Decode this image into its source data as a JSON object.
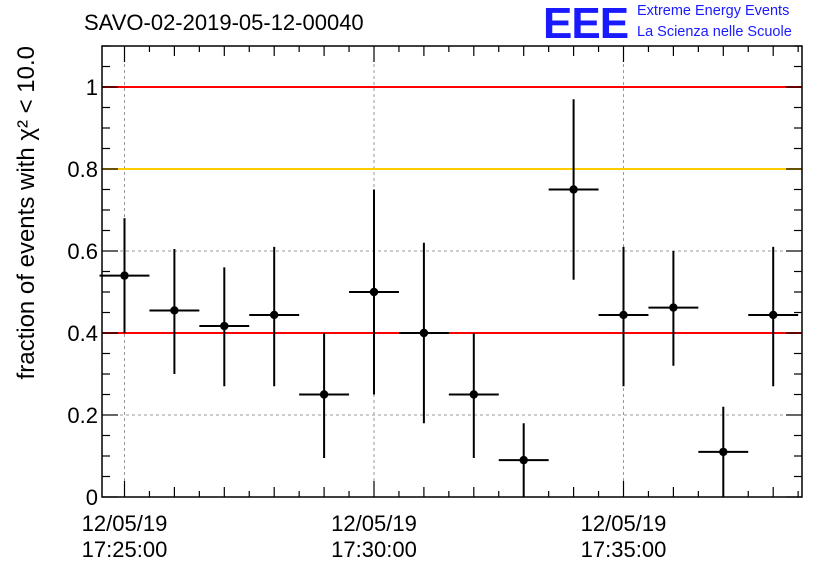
{
  "chart_data": {
    "type": "scatter",
    "title": "SAVO-02-2019-05-12-00040",
    "ylabel": "fraction of events with χ² < 10.0",
    "ylim": [
      0,
      1.1
    ],
    "y_ticks": [
      "0",
      "0.2",
      "0.4",
      "0.6",
      "0.8",
      "1"
    ],
    "x_tick_labels": [
      {
        "date": "12/05/19",
        "time": "17:25:00"
      },
      {
        "date": "12/05/19",
        "time": "17:30:00"
      },
      {
        "date": "12/05/19",
        "time": "17:35:00"
      }
    ],
    "grid": true,
    "reference_lines": [
      {
        "y": 1.0,
        "color": "#ff0000"
      },
      {
        "y": 0.8,
        "color": "#ffcc00"
      },
      {
        "y": 0.4,
        "color": "#ff0000"
      }
    ],
    "series": [
      {
        "color": "#000000",
        "points": [
          {
            "x": "17:25:00",
            "y": 0.54,
            "ylo": 0.4,
            "yhi": 0.68
          },
          {
            "x": "17:26:00",
            "y": 0.455,
            "ylo": 0.3,
            "yhi": 0.605
          },
          {
            "x": "17:27:00",
            "y": 0.417,
            "ylo": 0.27,
            "yhi": 0.56
          },
          {
            "x": "17:28:00",
            "y": 0.444,
            "ylo": 0.27,
            "yhi": 0.61
          },
          {
            "x": "17:29:00",
            "y": 0.25,
            "ylo": 0.095,
            "yhi": 0.4
          },
          {
            "x": "17:30:00",
            "y": 0.5,
            "ylo": 0.25,
            "yhi": 0.75
          },
          {
            "x": "17:31:00",
            "y": 0.4,
            "ylo": 0.18,
            "yhi": 0.62
          },
          {
            "x": "17:32:00",
            "y": 0.25,
            "ylo": 0.095,
            "yhi": 0.4
          },
          {
            "x": "17:33:00",
            "y": 0.09,
            "ylo": 0.0,
            "yhi": 0.18
          },
          {
            "x": "17:34:00",
            "y": 0.75,
            "ylo": 0.53,
            "yhi": 0.97
          },
          {
            "x": "17:35:00",
            "y": 0.444,
            "ylo": 0.27,
            "yhi": 0.61
          },
          {
            "x": "17:36:00",
            "y": 0.462,
            "ylo": 0.32,
            "yhi": 0.6
          },
          {
            "x": "17:37:00",
            "y": 0.11,
            "ylo": 0.0,
            "yhi": 0.22
          },
          {
            "x": "17:38:00",
            "y": 0.444,
            "ylo": 0.27,
            "yhi": 0.61
          }
        ]
      }
    ]
  },
  "logo": {
    "mark": "EEE",
    "line1": "Extreme Energy Events",
    "line2": "La Scienza nelle Scuole"
  }
}
